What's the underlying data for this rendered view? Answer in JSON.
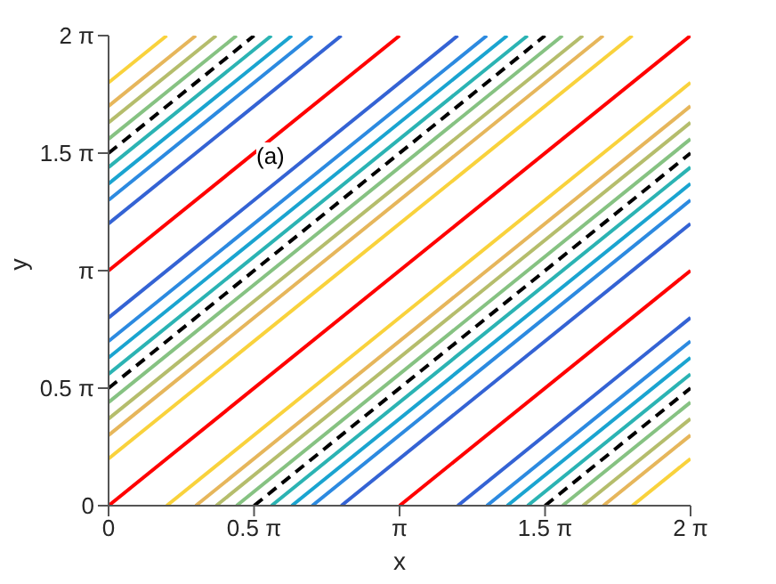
{
  "chart_data": {
    "type": "line",
    "xlabel": "x",
    "ylabel": "y",
    "annotations": [
      "(a)"
    ],
    "xlim": [
      0,
      6.2832
    ],
    "ylim": [
      0,
      6.2832
    ],
    "xticks": [
      0,
      {
        "value": 1.5708,
        "label": "0.5 π"
      },
      {
        "value": 3.1416,
        "label": "π"
      },
      {
        "value": 4.7124,
        "label": "1.5 π"
      },
      {
        "value": 6.2832,
        "label": "2 π"
      }
    ],
    "yticks": [
      0,
      {
        "value": 1.5708,
        "label": "0.5 π"
      },
      {
        "value": 3.1416,
        "label": "π"
      },
      {
        "value": 4.7124,
        "label": "1.5 π"
      },
      {
        "value": 6.2832,
        "label": "2 π"
      }
    ],
    "marker": "none",
    "line_style": "solid",
    "series": [
      {
        "x": [
          5.655,
          6.283
        ],
        "values": [
          0,
          0.628
        ],
        "color": "#f9d23c"
      },
      {
        "x": [
          5.341,
          6.283
        ],
        "values": [
          0,
          0.942
        ],
        "color": "#e6b65b"
      },
      {
        "x": [
          5.121,
          6.283
        ],
        "values": [
          0,
          1.162
        ],
        "color": "#b5bd6c"
      },
      {
        "x": [
          4.901,
          6.283
        ],
        "values": [
          0,
          1.382
        ],
        "color": "#86c282"
      },
      {
        "x": [
          4.712,
          6.283
        ],
        "values": [
          0,
          1.571
        ],
        "color": "#000000",
        "line_style": "dashed"
      },
      {
        "x": [
          4.524,
          6.283
        ],
        "values": [
          0,
          1.759
        ],
        "color": "#2bb3b3"
      },
      {
        "x": [
          4.304,
          6.283
        ],
        "values": [
          0,
          1.979
        ],
        "color": "#1aa4d0"
      },
      {
        "x": [
          4.084,
          6.283
        ],
        "values": [
          0,
          2.199
        ],
        "color": "#2c8ae0"
      },
      {
        "x": [
          3.77,
          6.283
        ],
        "values": [
          0,
          2.513
        ],
        "color": "#3463d4"
      },
      {
        "x": [
          3.142,
          6.283
        ],
        "values": [
          0,
          3.142
        ],
        "color": "#ff0000"
      },
      {
        "x": [
          2.513,
          6.283
        ],
        "values": [
          0,
          3.77
        ],
        "color": "#3463d4"
      },
      {
        "x": [
          2.199,
          6.283
        ],
        "values": [
          0,
          4.084
        ],
        "color": "#2c8ae0"
      },
      {
        "x": [
          1.979,
          6.283
        ],
        "values": [
          0,
          4.304
        ],
        "color": "#1aa4d0"
      },
      {
        "x": [
          1.759,
          6.283
        ],
        "values": [
          0,
          4.524
        ],
        "color": "#2bb3b3"
      },
      {
        "x": [
          1.571,
          6.283
        ],
        "values": [
          0,
          4.712
        ],
        "color": "#000000",
        "line_style": "dashed"
      },
      {
        "x": [
          1.382,
          6.283
        ],
        "values": [
          0,
          4.901
        ],
        "color": "#86c282"
      },
      {
        "x": [
          1.162,
          6.283
        ],
        "values": [
          0,
          5.121
        ],
        "color": "#b5bd6c"
      },
      {
        "x": [
          0.942,
          6.283
        ],
        "values": [
          0,
          5.341
        ],
        "color": "#e6b65b"
      },
      {
        "x": [
          0.628,
          6.283
        ],
        "values": [
          0,
          5.655
        ],
        "color": "#f9d23c"
      },
      {
        "x": [
          0,
          6.283
        ],
        "values": [
          0,
          6.283
        ],
        "color": "#ff0000"
      },
      {
        "x": [
          0,
          5.655
        ],
        "values": [
          0.628,
          6.283
        ],
        "color": "#f9d23c"
      },
      {
        "x": [
          0,
          5.341
        ],
        "values": [
          0.942,
          6.283
        ],
        "color": "#e6b65b"
      },
      {
        "x": [
          0,
          5.121
        ],
        "values": [
          1.162,
          6.283
        ],
        "color": "#b5bd6c"
      },
      {
        "x": [
          0,
          4.901
        ],
        "values": [
          1.382,
          6.283
        ],
        "color": "#86c282"
      },
      {
        "x": [
          0,
          4.712
        ],
        "values": [
          1.571,
          6.283
        ],
        "color": "#000000",
        "line_style": "dashed"
      },
      {
        "x": [
          0,
          4.524
        ],
        "values": [
          1.759,
          6.283
        ],
        "color": "#2bb3b3"
      },
      {
        "x": [
          0,
          4.304
        ],
        "values": [
          1.979,
          6.283
        ],
        "color": "#1aa4d0"
      },
      {
        "x": [
          0,
          4.084
        ],
        "values": [
          2.199,
          6.283
        ],
        "color": "#2c8ae0"
      },
      {
        "x": [
          0,
          3.77
        ],
        "values": [
          2.513,
          6.283
        ],
        "color": "#3463d4"
      },
      {
        "x": [
          0,
          3.142
        ],
        "values": [
          3.142,
          6.283
        ],
        "color": "#ff0000"
      },
      {
        "x": [
          0,
          2.513
        ],
        "values": [
          3.77,
          6.283
        ],
        "color": "#3463d4"
      },
      {
        "x": [
          0,
          2.199
        ],
        "values": [
          4.084,
          6.283
        ],
        "color": "#2c8ae0"
      },
      {
        "x": [
          0,
          1.979
        ],
        "values": [
          4.304,
          6.283
        ],
        "color": "#1aa4d0"
      },
      {
        "x": [
          0,
          1.759
        ],
        "values": [
          4.524,
          6.283
        ],
        "color": "#2bb3b3"
      },
      {
        "x": [
          0,
          1.571
        ],
        "values": [
          4.712,
          6.283
        ],
        "color": "#000000",
        "line_style": "dashed"
      },
      {
        "x": [
          0,
          1.382
        ],
        "values": [
          4.901,
          6.283
        ],
        "color": "#86c282"
      },
      {
        "x": [
          0,
          1.162
        ],
        "values": [
          5.121,
          6.283
        ],
        "color": "#b5bd6c"
      },
      {
        "x": [
          0,
          0.942
        ],
        "values": [
          5.341,
          6.283
        ],
        "color": "#e6b65b"
      },
      {
        "x": [
          0,
          0.628
        ],
        "values": [
          5.655,
          6.283
        ],
        "color": "#f9d23c"
      }
    ]
  }
}
